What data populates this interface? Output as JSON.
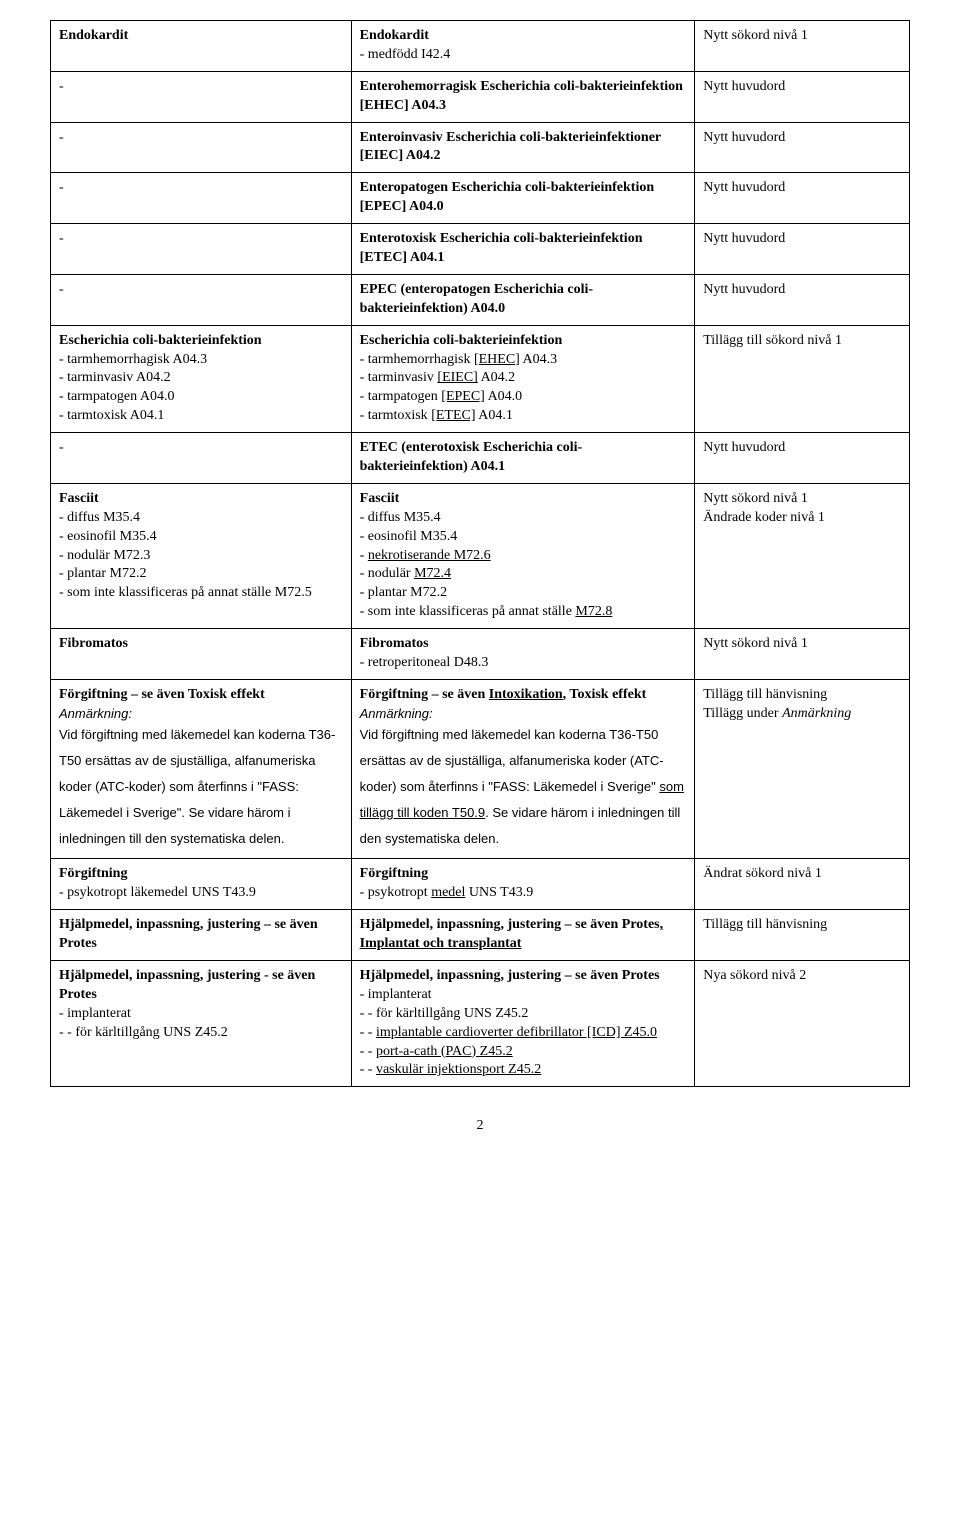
{
  "page_number": "2",
  "rows": [
    {
      "c1": [
        {
          "t": "Endokardit",
          "b": true
        }
      ],
      "c2": [
        {
          "t": "Endokardit",
          "b": true
        },
        {
          "t": "- medfödd I42.4"
        }
      ],
      "c3": [
        {
          "t": "Nytt sökord nivå 1"
        }
      ]
    },
    {
      "c1": [
        {
          "t": "-"
        }
      ],
      "c2": [
        {
          "t": "Enterohemorragisk Escherichia coli-bakterieinfektion [EHEC] A04.3",
          "b": true
        }
      ],
      "c3": [
        {
          "t": "Nytt huvudord"
        }
      ]
    },
    {
      "c1": [
        {
          "t": "-"
        }
      ],
      "c2": [
        {
          "t": "Enteroinvasiv Escherichia coli-bakterieinfektioner [EIEC] A04.2",
          "b": true
        }
      ],
      "c3": [
        {
          "t": "Nytt huvudord"
        }
      ]
    },
    {
      "c1": [
        {
          "t": "-"
        }
      ],
      "c2": [
        {
          "t": "Enteropatogen Escherichia coli-bakterieinfektion [EPEC] A04.0",
          "b": true
        }
      ],
      "c3": [
        {
          "t": "Nytt huvudord"
        }
      ]
    },
    {
      "c1": [
        {
          "t": "-"
        }
      ],
      "c2": [
        {
          "t": "Enterotoxisk Escherichia coli-bakterieinfektion [ETEC] A04.1",
          "b": true
        }
      ],
      "c3": [
        {
          "t": "Nytt huvudord"
        }
      ]
    },
    {
      "c1": [
        {
          "t": "-"
        }
      ],
      "c2": [
        {
          "t": "EPEC (enteropatogen Escherichia coli-bakterieinfektion) A04.0",
          "b": true
        }
      ],
      "c3": [
        {
          "t": "Nytt huvudord"
        }
      ]
    },
    {
      "c1": [
        {
          "t": "Escherichia coli-bakterieinfektion",
          "b": true
        },
        {
          "t": "- tarmhemorrhagisk A04.3"
        },
        {
          "t": "- tarminvasiv A04.2"
        },
        {
          "t": "- tarmpatogen A04.0"
        },
        {
          "t": "- tarmtoxisk A04.1"
        }
      ],
      "c2": [
        {
          "t": "Escherichia coli-bakterieinfektion",
          "b": true
        },
        {
          "parts": [
            {
              "t": "- tarmhemorrhagisk "
            },
            {
              "t": "[EHEC]",
              "u": true
            },
            {
              "t": " A04.3"
            }
          ]
        },
        {
          "parts": [
            {
              "t": "- tarminvasiv "
            },
            {
              "t": "[EIEC]",
              "u": true
            },
            {
              "t": " A04.2"
            }
          ]
        },
        {
          "parts": [
            {
              "t": "- tarmpatogen "
            },
            {
              "t": "[EPEC]",
              "u": true
            },
            {
              "t": " A04.0"
            }
          ]
        },
        {
          "parts": [
            {
              "t": "- tarmtoxisk "
            },
            {
              "t": "[ETEC]",
              "u": true
            },
            {
              "t": " A04.1"
            }
          ]
        }
      ],
      "c3": [
        {
          "t": "Tillägg till sökord nivå 1"
        }
      ]
    },
    {
      "c1": [
        {
          "t": "-"
        }
      ],
      "c2": [
        {
          "t": "ETEC (enterotoxisk Escherichia coli-bakterieinfektion) A04.1",
          "b": true
        }
      ],
      "c3": [
        {
          "t": "Nytt huvudord"
        }
      ]
    },
    {
      "c1": [
        {
          "t": "Fasciit",
          "b": true
        },
        {
          "t": " - diffus M35.4"
        },
        {
          "t": " - eosinofil M35.4"
        },
        {
          "t": " - nodulär M72.3"
        },
        {
          "t": " - plantar M72.2"
        },
        {
          "t": " - som inte klassificeras på annat ställe M72.5"
        }
      ],
      "c2": [
        {
          "t": "Fasciit",
          "b": true
        },
        {
          "t": " - diffus M35.4"
        },
        {
          "t": " - eosinofil M35.4"
        },
        {
          "parts": [
            {
              "t": " - "
            },
            {
              "t": "nekrotiserande M72.6",
              "u": true
            }
          ]
        },
        {
          "parts": [
            {
              "t": " - nodulär "
            },
            {
              "t": "M72.4",
              "u": true
            }
          ]
        },
        {
          "t": " - plantar M72.2"
        },
        {
          "parts": [
            {
              "t": " - som inte klassificeras på annat ställe "
            },
            {
              "t": "M72.8",
              "u": true
            }
          ]
        }
      ],
      "c3": [
        {
          "t": "Nytt sökord nivå 1"
        },
        {
          "t": "Ändrade koder nivå 1"
        }
      ]
    },
    {
      "c1": [
        {
          "t": "Fibromatos",
          "b": true
        }
      ],
      "c2": [
        {
          "t": "Fibromatos",
          "b": true
        },
        {
          "t": "- retroperitoneal D48.3"
        }
      ],
      "c3": [
        {
          "t": "Nytt sökord nivå 1"
        }
      ]
    },
    {
      "c1": [
        {
          "t": "Förgiftning – se även Toxisk effekt",
          "b": true
        },
        {
          "t": "Anmärkning:",
          "italic": true
        },
        {
          "t": "Vid förgiftning med läkemedel kan koderna T36-T50 ersättas av de sjuställiga, alfanumeriska koder (ATC-koder) som återfinns i \"FASS: Läkemedel i Sverige\". Se vidare härom i inledningen till den systematiska delen.",
          "sans": true,
          "spaced": true
        }
      ],
      "c2": [
        {
          "parts": [
            {
              "t": "Förgiftning – se även ",
              "b": true
            },
            {
              "t": "Intoxikation",
              "b": true,
              "u": true
            },
            {
              "t": ", Toxisk effekt",
              "b": true
            }
          ]
        },
        {
          "t": "Anmärkning:",
          "italic": true
        },
        {
          "parts_sans": [
            {
              "t": "Vid förgiftning med läkemedel kan koderna T36-T50 ersättas av de sjuställiga, alfanumeriska koder (ATC-koder) som återfinns i \"FASS: Läkemedel i Sverige\" "
            },
            {
              "t": "som tillägg till koden T50.9",
              "u": true
            },
            {
              "t": ". Se vidare härom i inledningen till den systematiska delen."
            }
          ],
          "spaced": true
        }
      ],
      "c3": [
        {
          "t": "Tillägg till hänvisning"
        },
        {
          "parts": [
            {
              "t": "Tillägg under "
            },
            {
              "t": "Anmärkning",
              "i": true
            }
          ]
        }
      ]
    },
    {
      "c1": [
        {
          "t": "Förgiftning",
          "b": true
        },
        {
          "t": "- psykotropt läkemedel UNS T43.9"
        }
      ],
      "c2": [
        {
          "t": "Förgiftning",
          "b": true
        },
        {
          "parts": [
            {
              "t": "- psykotropt "
            },
            {
              "t": "medel",
              "u": true
            },
            {
              "t": " UNS T43.9"
            }
          ]
        }
      ],
      "c3": [
        {
          "t": "Ändrat sökord nivå 1"
        }
      ]
    },
    {
      "c1": [
        {
          "t": "Hjälpmedel, inpassning, justering – se även Protes",
          "b": true
        }
      ],
      "c2": [
        {
          "parts": [
            {
              "t": "Hjälpmedel, inpassning, justering – se även Protes",
              "b": true
            },
            {
              "t": ", Implantat och transplantat",
              "b": true,
              "u": true
            }
          ]
        }
      ],
      "c3": [
        {
          "t": "Tillägg till hänvisning"
        }
      ]
    },
    {
      "c1": [
        {
          "t": "Hjälpmedel, inpassning, justering  - se även Protes",
          "b": true
        },
        {
          "t": " - implanterat"
        },
        {
          "t": " - - för kärltillgång UNS Z45.2"
        }
      ],
      "c2": [
        {
          "t": "Hjälpmedel, inpassning, justering – se även Protes",
          "b": true
        },
        {
          "t": " - implanterat"
        },
        {
          "t": " - - för kärltillgång UNS Z45.2"
        },
        {
          "parts": [
            {
              "t": " - - "
            },
            {
              "t": "implantable cardioverter defibrillator [ICD] Z45.0",
              "u": true
            }
          ]
        },
        {
          "parts": [
            {
              "t": " - - "
            },
            {
              "t": "port-a-cath (PAC) Z45.2",
              "u": true
            }
          ]
        },
        {
          "parts": [
            {
              "t": " - - "
            },
            {
              "t": "vaskulär injektionsport Z45.2",
              "u": true
            }
          ]
        }
      ],
      "c3": [
        {
          "t": "Nya sökord nivå 2"
        }
      ]
    }
  ]
}
